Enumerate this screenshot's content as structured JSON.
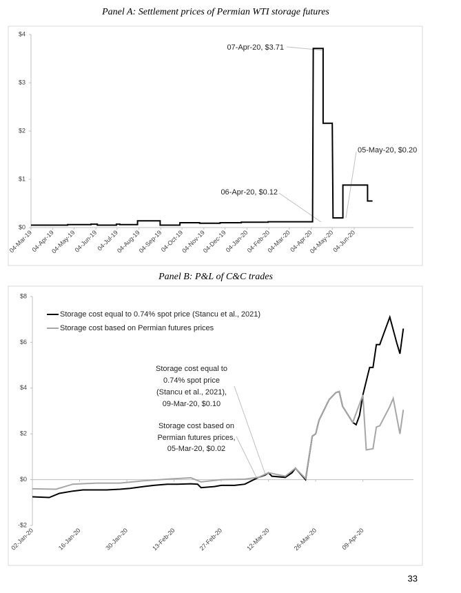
{
  "chart_data": [
    {
      "type": "line",
      "title": "Panel A: Settlement prices of Permian WTI storage futures",
      "x": [
        "2019-03-04",
        "2019-04-25",
        "2019-04-25",
        "2019-05-28",
        "2019-05-28",
        "2019-06-06",
        "2019-06-06",
        "2019-07-03",
        "2019-07-03",
        "2019-07-08",
        "2019-07-08",
        "2019-08-02",
        "2019-08-02",
        "2019-09-03",
        "2019-09-03",
        "2019-10-01",
        "2019-10-01",
        "2019-10-29",
        "2019-10-29",
        "2019-11-27",
        "2019-11-27",
        "2019-12-27",
        "2019-12-27",
        "2020-02-03",
        "2020-02-03",
        "2020-04-06",
        "2020-04-07",
        "2020-04-21",
        "2020-04-21",
        "2020-05-04",
        "2020-05-05",
        "2020-05-19",
        "2020-05-19",
        "2020-06-23",
        "2020-06-23",
        "2020-06-30"
      ],
      "values": [
        0.05,
        0.05,
        0.06,
        0.06,
        0.07,
        0.07,
        0.05,
        0.05,
        0.07,
        0.07,
        0.06,
        0.06,
        0.14,
        0.14,
        0.05,
        0.05,
        0.1,
        0.1,
        0.09,
        0.09,
        0.1,
        0.1,
        0.11,
        0.11,
        0.12,
        0.12,
        3.71,
        3.71,
        2.16,
        2.16,
        0.2,
        0.2,
        0.88,
        0.88,
        0.55,
        0.55
      ],
      "color": "#000000",
      "xlim": [
        "2019-03-04",
        "2020-08-27"
      ],
      "xticks": [
        {
          "value": "2019-03-04",
          "label": "04-Mar-19"
        },
        {
          "value": "2019-04-04",
          "label": "04-Apr-19"
        },
        {
          "value": "2019-05-04",
          "label": "04-May-19"
        },
        {
          "value": "2019-06-04",
          "label": "04-Jun-19"
        },
        {
          "value": "2019-07-04",
          "label": "04-Jul-19"
        },
        {
          "value": "2019-08-04",
          "label": "04-Aug-19"
        },
        {
          "value": "2019-09-04",
          "label": "04-Sep-19"
        },
        {
          "value": "2019-10-04",
          "label": "04-Oct-19"
        },
        {
          "value": "2019-11-04",
          "label": "04-Nov-19"
        },
        {
          "value": "2019-12-04",
          "label": "04-Dec-19"
        },
        {
          "value": "2020-01-04",
          "label": "04-Jan-20"
        },
        {
          "value": "2020-02-04",
          "label": "04-Feb-20"
        },
        {
          "value": "2020-03-04",
          "label": "04-Mar-20"
        },
        {
          "value": "2020-04-04",
          "label": "04-Apr-20"
        },
        {
          "value": "2020-05-04",
          "label": "04-May-20"
        },
        {
          "value": "2020-06-04",
          "label": "04-Jun-20"
        }
      ],
      "ylim": [
        0,
        4
      ],
      "yticks": [
        {
          "value": 0,
          "label": "$0"
        },
        {
          "value": 1,
          "label": "$1"
        },
        {
          "value": 2,
          "label": "$2"
        },
        {
          "value": 3,
          "label": "$3"
        },
        {
          "value": 4,
          "label": "$4"
        }
      ],
      "annotations": [
        "07-Apr-20, $3.71",
        "06-Apr-20, $0.12",
        "05-May-20, $0.20"
      ]
    },
    {
      "type": "line",
      "title": "Panel B: P&L of C&C trades",
      "series": [
        {
          "name": "Storage cost equal to 0.74% spot price (Stancu et al., 2021)",
          "color": "#000000",
          "x": [
            "2020-01-02",
            "2020-01-07",
            "2020-01-10",
            "2020-01-14",
            "2020-01-17",
            "2020-01-21",
            "2020-01-24",
            "2020-01-28",
            "2020-01-31",
            "2020-02-04",
            "2020-02-07",
            "2020-02-11",
            "2020-02-14",
            "2020-02-18",
            "2020-02-20",
            "2020-02-21",
            "2020-02-25",
            "2020-02-27",
            "2020-03-02",
            "2020-03-05",
            "2020-03-09",
            "2020-03-11",
            "2020-03-12",
            "2020-03-13",
            "2020-03-17",
            "2020-03-19",
            "2020-03-20",
            "2020-03-23",
            "2020-03-25",
            "2020-03-26",
            "2020-03-27",
            "2020-03-30",
            "2020-04-01",
            "2020-04-02",
            "2020-04-03",
            "2020-04-06",
            "2020-04-07",
            "2020-04-08",
            "2020-04-09",
            "2020-04-11",
            "2020-04-12",
            "2020-04-13",
            "2020-04-14",
            "2020-04-16",
            "2020-04-17",
            "2020-04-19",
            "2020-04-20",
            "2020-04-21"
          ],
          "values": [
            -0.75,
            -0.78,
            -0.6,
            -0.5,
            -0.45,
            -0.45,
            -0.45,
            -0.42,
            -0.38,
            -0.3,
            -0.25,
            -0.2,
            -0.2,
            -0.18,
            -0.2,
            -0.35,
            -0.3,
            -0.25,
            -0.25,
            -0.2,
            0.1,
            0.2,
            0.3,
            0.15,
            0.1,
            0.3,
            0.5,
            0.0,
            1.9,
            2.0,
            2.6,
            3.5,
            3.8,
            3.85,
            3.2,
            2.5,
            2.4,
            2.8,
            3.7,
            4.9,
            4.9,
            5.9,
            5.9,
            6.7,
            7.1,
            6.0,
            5.5,
            6.6
          ]
        },
        {
          "name": "Storage cost based on Permian futures prices",
          "color": "#a6a6a6",
          "x": [
            "2020-01-02",
            "2020-01-09",
            "2020-01-14",
            "2020-01-21",
            "2020-01-28",
            "2020-02-04",
            "2020-02-11",
            "2020-02-18",
            "2020-02-21",
            "2020-02-27",
            "2020-03-05",
            "2020-03-09",
            "2020-03-12",
            "2020-03-17",
            "2020-03-20",
            "2020-03-23",
            "2020-03-25",
            "2020-03-26",
            "2020-03-27",
            "2020-03-30",
            "2020-04-01",
            "2020-04-02",
            "2020-04-03",
            "2020-04-06",
            "2020-04-09",
            "2020-04-10",
            "2020-04-12",
            "2020-04-13",
            "2020-04-14",
            "2020-04-17",
            "2020-04-18",
            "2020-04-20",
            "2020-04-21"
          ],
          "values": [
            -0.4,
            -0.42,
            -0.2,
            -0.15,
            -0.15,
            -0.05,
            0.02,
            0.08,
            -0.1,
            0.0,
            0.02,
            0.1,
            0.3,
            0.15,
            0.5,
            0.05,
            1.9,
            2.0,
            2.6,
            3.5,
            3.8,
            3.85,
            3.2,
            2.5,
            3.7,
            1.3,
            1.35,
            2.3,
            2.35,
            3.2,
            3.55,
            2.0,
            3.05
          ]
        }
      ],
      "xlim": [
        "2020-01-02",
        "2020-04-24"
      ],
      "xticks": [
        {
          "value": "2020-01-02",
          "label": "02-Jan-20"
        },
        {
          "value": "2020-01-16",
          "label": "16-Jan-20"
        },
        {
          "value": "2020-01-30",
          "label": "30-Jan-20"
        },
        {
          "value": "2020-02-13",
          "label": "13-Feb-20"
        },
        {
          "value": "2020-02-27",
          "label": "27-Feb-20"
        },
        {
          "value": "2020-03-12",
          "label": "12-Mar-20"
        },
        {
          "value": "2020-03-26",
          "label": "26-Mar-20"
        },
        {
          "value": "2020-04-09",
          "label": "09-Apr-20"
        }
      ],
      "ylim": [
        -2,
        8
      ],
      "yticks": [
        {
          "value": -2,
          "label": "-$2"
        },
        {
          "value": 0,
          "label": "$0"
        },
        {
          "value": 2,
          "label": "$2"
        },
        {
          "value": 4,
          "label": "$4"
        },
        {
          "value": 6,
          "label": "$6"
        },
        {
          "value": 8,
          "label": "$8"
        }
      ],
      "annotations": [
        [
          "Storage cost equal to",
          "0.74% spot price",
          "(Stancu et al., 2021),",
          "09-Mar-20, $0.10"
        ],
        [
          "Storage cost based on",
          "Permian futures prices,",
          "05-Mar-20, $0.02"
        ]
      ]
    }
  ],
  "page_number": "33"
}
